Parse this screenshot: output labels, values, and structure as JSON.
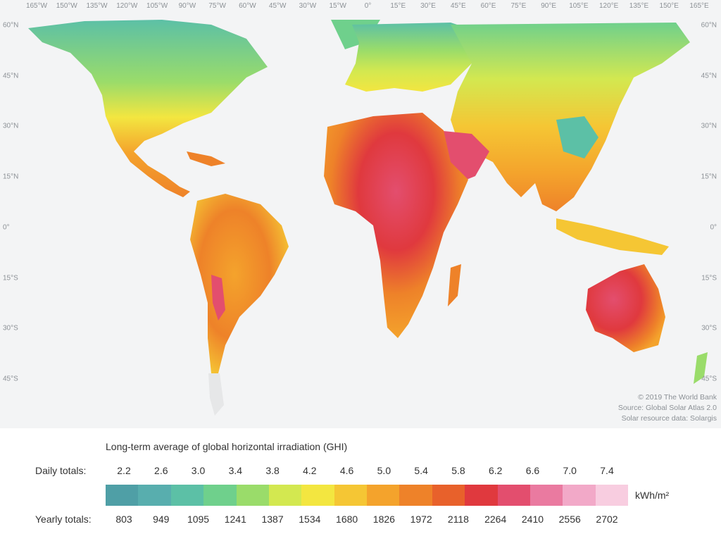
{
  "map": {
    "longitude_labels": [
      "165°W",
      "150°W",
      "135°W",
      "120°W",
      "105°W",
      "90°W",
      "75°W",
      "60°W",
      "45°W",
      "30°W",
      "15°W",
      "0°",
      "15°E",
      "30°E",
      "45°E",
      "60°E",
      "75°E",
      "90°E",
      "105°E",
      "120°E",
      "135°E",
      "150°E",
      "165°E"
    ],
    "latitude_labels": [
      "60°N",
      "45°N",
      "30°N",
      "15°N",
      "0°",
      "15°S",
      "30°S",
      "45°S"
    ],
    "credits": [
      "© 2019 The World Bank",
      "Source: Global Solar Atlas 2.0",
      "Solar resource data: Solargis"
    ]
  },
  "legend": {
    "title": "Long-term average of global horizontal irradiation (GHI)",
    "daily_label": "Daily totals:",
    "yearly_label": "Yearly totals:",
    "daily_values": [
      "2.2",
      "2.6",
      "3.0",
      "3.4",
      "3.8",
      "4.2",
      "4.6",
      "5.0",
      "5.4",
      "5.8",
      "6.2",
      "6.6",
      "7.0",
      "7.4"
    ],
    "yearly_values": [
      "803",
      "949",
      "1095",
      "1241",
      "1387",
      "1534",
      "1680",
      "1826",
      "1972",
      "2118",
      "2264",
      "2410",
      "2556",
      "2702"
    ],
    "unit": "kWh/m²",
    "colors": [
      "#4f9fa6",
      "#58aeae",
      "#5cc0a6",
      "#6fd08c",
      "#9adc6a",
      "#d3e850",
      "#f3e640",
      "#f5c634",
      "#f4a32c",
      "#ee8229",
      "#e8612b",
      "#e0393e",
      "#e34e6e",
      "#ea7aa0",
      "#f2a9c8",
      "#f8cde0"
    ]
  }
}
